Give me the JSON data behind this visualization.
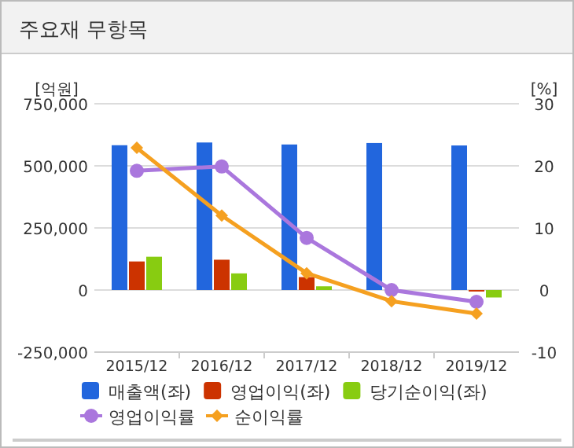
{
  "chart_data": {
    "type": "bar",
    "title": "주요재 무항목",
    "ylabel": "[억원]",
    "y2label": "[%]",
    "categories": [
      "2015/12",
      "2016/12",
      "2017/12",
      "2018/12",
      "2019/12"
    ],
    "series": [
      {
        "name": "매출액(좌)",
        "color": "#2266dd",
        "values": [
          583000,
          594000,
          586000,
          592000,
          582000
        ]
      },
      {
        "name": "영업이익(좌)",
        "color": "#cc3300",
        "values": [
          115000,
          122000,
          52000,
          null,
          -6000
        ]
      },
      {
        "name": "당기순이익(좌)",
        "color": "#88cc11",
        "values": [
          134000,
          67000,
          15000,
          null,
          -30000
        ]
      },
      {
        "name": "영업이익률",
        "type": "line",
        "axis": "y2",
        "marker": "circle",
        "color": "#aa77dd",
        "values": [
          19.2,
          19.9,
          8.4,
          0,
          -1.9
        ]
      },
      {
        "name": "순이익률",
        "type": "line",
        "axis": "y2",
        "marker": "diamond",
        "color": "#f5a020",
        "values": [
          22.9,
          12.0,
          2.7,
          -1.8,
          -3.8
        ]
      }
    ],
    "ylim": [
      -250000,
      750000
    ],
    "yticks": [
      {
        "value": -250000,
        "label": "-250,000"
      },
      {
        "value": 0,
        "label": "0"
      },
      {
        "value": 250000,
        "label": "250,000"
      },
      {
        "value": 500000,
        "label": "500,000"
      },
      {
        "value": 750000,
        "label": "750,000"
      }
    ],
    "y2lim": [
      -10,
      30
    ],
    "y2ticks": [
      -10,
      0,
      10,
      20,
      30
    ],
    "grid": "y",
    "legend": "bottom"
  }
}
